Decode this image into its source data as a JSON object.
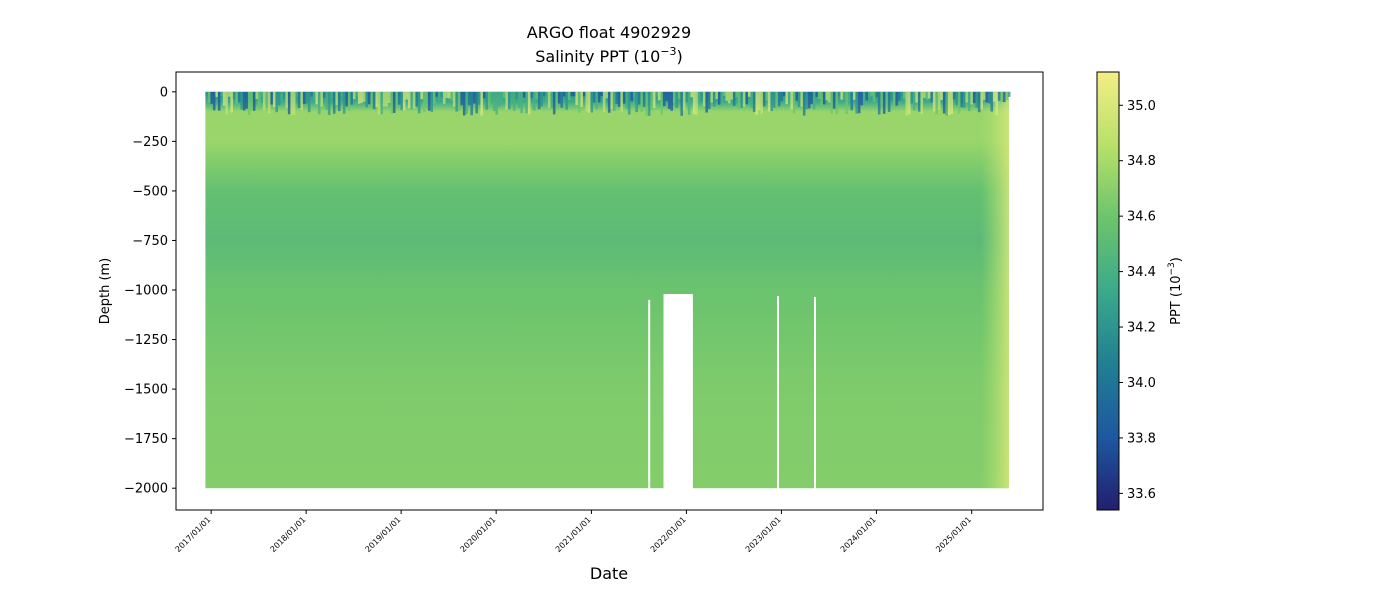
{
  "chart_data": {
    "type": "heatmap",
    "title": "ARGO float 4902929",
    "subtitle_prefix": "Salinity PPT (10",
    "subtitle_exp": "−3",
    "subtitle_suffix": ")",
    "xlabel": "Date",
    "ylabel": "Depth (m)",
    "colorbar_label_prefix": "PPT (10",
    "colorbar_label_exp": "−3",
    "colorbar_label_suffix": ")",
    "colormap": "YlGnBu_r (dark blue → teal → green → pale yellow)",
    "colormap_stops": [
      "#231f6e",
      "#1d58a0",
      "#217f93",
      "#3ba98b",
      "#6cc46c",
      "#b8e06a",
      "#f3ee86"
    ],
    "colorbar_range": [
      33.54,
      35.12
    ],
    "colorbar_ticks": [
      "33.6",
      "33.8",
      "34.0",
      "34.2",
      "34.4",
      "34.6",
      "34.8",
      "35.0"
    ],
    "colorbar_tick_values": [
      33.6,
      33.8,
      34.0,
      34.2,
      34.4,
      34.6,
      34.8,
      35.0
    ],
    "x_tick_labels": [
      "2017/01/01",
      "2018/01/01",
      "2019/01/01",
      "2020/01/01",
      "2021/01/01",
      "2022/01/01",
      "2023/01/01",
      "2024/01/01",
      "2025/01/01"
    ],
    "x_range": [
      "2016-08-19",
      "2025-10-02"
    ],
    "data_range": [
      "2016-12-10",
      "2025-05-24"
    ],
    "y_tick_labels": [
      "0",
      "−250",
      "−500",
      "−750",
      "−1000",
      "−1250",
      "−1500",
      "−1750",
      "−2000"
    ],
    "y_tick_values": [
      0,
      -250,
      -500,
      -750,
      -1000,
      -1250,
      -1500,
      -1750,
      -2000
    ],
    "ylim": [
      -2110,
      100
    ],
    "data_depth_range": [
      -2000,
      0
    ],
    "typical_salinity_by_depth": [
      {
        "depth": 0,
        "value": 34.2
      },
      {
        "depth": -50,
        "value": 34.35
      },
      {
        "depth": -100,
        "value": 34.75
      },
      {
        "depth": -250,
        "value": 34.75
      },
      {
        "depth": -500,
        "value": 34.55
      },
      {
        "depth": -750,
        "value": 34.5
      },
      {
        "depth": -1000,
        "value": 34.58
      },
      {
        "depth": -1500,
        "value": 34.66
      },
      {
        "depth": -2000,
        "value": 34.68
      }
    ],
    "data_gaps": [
      {
        "start": "2021-08-07",
        "end": "2021-08-14",
        "top_depth": -1050
      },
      {
        "start": "2021-10-05",
        "end": "2022-01-26",
        "top_depth": -1020
      },
      {
        "start": "2022-12-15",
        "end": "2022-12-22",
        "top_depth": -1030
      },
      {
        "start": "2023-05-06",
        "end": "2023-05-13",
        "top_depth": -1035
      }
    ],
    "grid": false
  }
}
